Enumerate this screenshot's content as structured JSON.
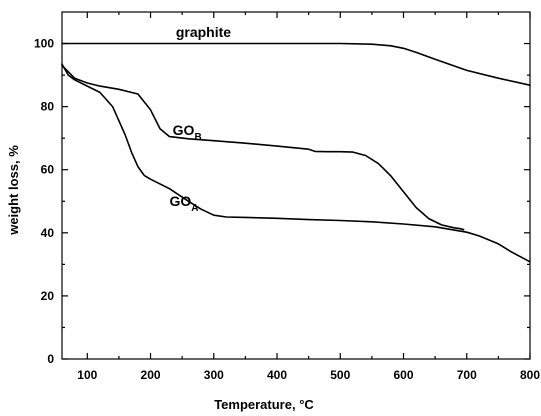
{
  "chart_data": {
    "type": "line",
    "title": "",
    "xlabel": "Temperature, °C",
    "ylabel": "weight loss, %",
    "xlim": [
      60,
      800
    ],
    "ylim": [
      0,
      110
    ],
    "x_ticks": [
      100,
      200,
      300,
      400,
      500,
      600,
      700,
      800
    ],
    "y_ticks": [
      0,
      20,
      40,
      60,
      80,
      100
    ],
    "x_tick_labels": [
      "100",
      "200",
      "300",
      "400",
      "500",
      "600",
      "700",
      "800"
    ],
    "y_tick_labels": [
      "0",
      "20",
      "40",
      "60",
      "80",
      "100"
    ],
    "grid": false,
    "legend": "none",
    "series": [
      {
        "name": "graphite",
        "label_main": "graphite",
        "label_sub": "",
        "label_at": [
          240,
          102
        ],
        "color": "#000000",
        "x": [
          60,
          100,
          200,
          300,
          400,
          500,
          550,
          580,
          600,
          620,
          650,
          700,
          750,
          800
        ],
        "y": [
          100,
          100,
          100,
          100,
          100,
          100,
          99.8,
          99.3,
          98.5,
          97.2,
          95,
          91.5,
          89,
          86.8
        ]
      },
      {
        "name": "GOB",
        "label_main": "GO",
        "label_sub": "B",
        "label_at": [
          235,
          71
        ],
        "color": "#000000",
        "x": [
          60,
          80,
          100,
          120,
          150,
          180,
          200,
          215,
          230,
          260,
          300,
          350,
          400,
          450,
          460,
          480,
          500,
          520,
          540,
          560,
          580,
          600,
          620,
          640,
          660,
          680,
          690,
          695
        ],
        "y": [
          93,
          89,
          87.5,
          86.5,
          85.5,
          84,
          79,
          73,
          70.5,
          69.8,
          69.2,
          68.4,
          67.5,
          66.5,
          65.8,
          65.7,
          65.7,
          65.6,
          64.5,
          62,
          58,
          53,
          48,
          44.5,
          42.5,
          41.6,
          41.3,
          41
        ]
      },
      {
        "name": "GOA",
        "label_main": "GO",
        "label_sub": "A",
        "label_at": [
          230,
          48.5
        ],
        "color": "#000000",
        "x": [
          60,
          70,
          80,
          100,
          120,
          140,
          160,
          170,
          180,
          190,
          200,
          230,
          260,
          280,
          300,
          320,
          350,
          400,
          450,
          500,
          550,
          600,
          650,
          700,
          720,
          750,
          770,
          800
        ],
        "y": [
          93.5,
          90,
          88.5,
          86.5,
          84.5,
          80,
          71,
          65.5,
          61,
          58.2,
          57,
          54,
          50,
          47.5,
          45.6,
          45,
          44.9,
          44.6,
          44.2,
          43.9,
          43.5,
          42.8,
          41.9,
          40.2,
          39,
          36.5,
          34,
          30.8
        ]
      }
    ]
  }
}
